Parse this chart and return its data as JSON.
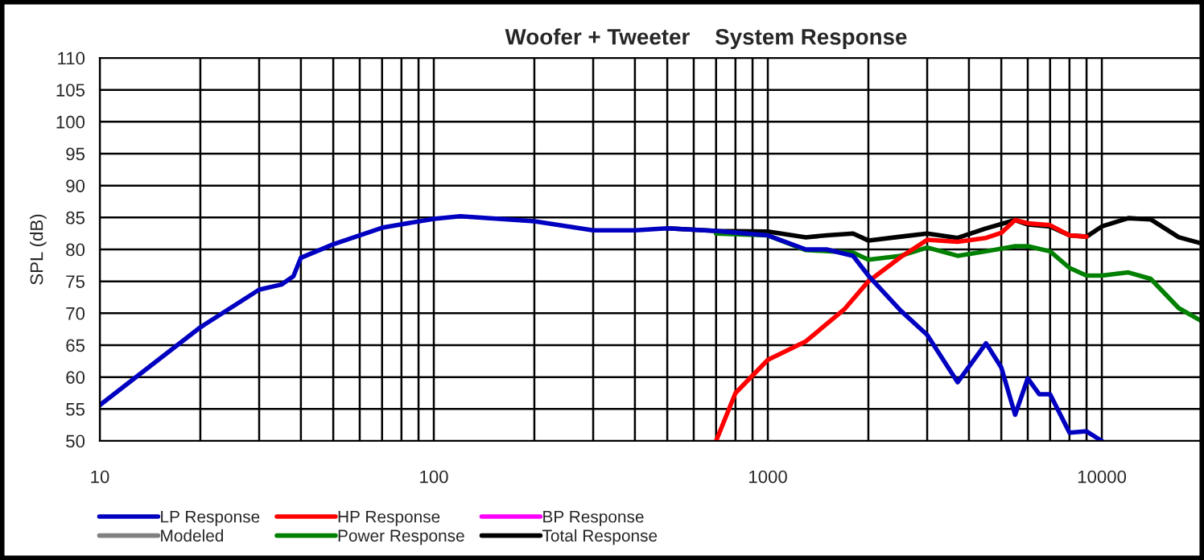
{
  "chart_data": {
    "type": "line",
    "title": "Woofer + Tweeter    System Response",
    "ylabel": "SPL (dB)",
    "xlim": [
      10,
      20000
    ],
    "xticks": [
      10,
      100,
      1000,
      10000
    ],
    "ylim": [
      50,
      110
    ],
    "yticks": [
      50,
      55,
      60,
      65,
      70,
      75,
      80,
      85,
      90,
      95,
      100,
      105,
      110
    ],
    "log": "x",
    "grid": true,
    "legend": "bottom",
    "marker": "none",
    "line_style": "solid",
    "series": [
      {
        "name": "Total Response",
        "color": "#000000",
        "x": [
          500,
          700,
          1000,
          1300,
          1500,
          1800,
          2000,
          2500,
          3000,
          3700,
          4500,
          5500,
          6000,
          7000,
          8000,
          9000,
          10000,
          12000,
          14000,
          17000,
          20000
        ],
        "values": [
          83.3,
          82.9,
          82.8,
          81.9,
          82.2,
          82.5,
          81.4,
          82.0,
          82.5,
          81.8,
          83.3,
          84.6,
          83.9,
          83.6,
          82.2,
          82.0,
          83.6,
          84.9,
          84.7,
          81.9,
          80.9
        ]
      },
      {
        "name": "Power Response",
        "color": "#008000",
        "x": [
          700,
          1000,
          1300,
          1800,
          2000,
          2500,
          3000,
          3700,
          4500,
          5500,
          6000,
          7000,
          8000,
          9000,
          10000,
          12000,
          14000,
          17000,
          20000
        ],
        "values": [
          82.5,
          82.2,
          79.9,
          79.5,
          78.4,
          79.0,
          80.3,
          79.0,
          79.7,
          80.5,
          80.5,
          79.7,
          77.1,
          75.9,
          75.9,
          76.4,
          75.4,
          70.8,
          68.7
        ]
      },
      {
        "name": "HP Response",
        "color": "#ff0000",
        "x": [
          700,
          800,
          1000,
          1300,
          1700,
          2000,
          2500,
          3000,
          3700,
          4500,
          5000,
          5500,
          6000,
          7000,
          8000,
          9000
        ],
        "values": [
          50.0,
          57.5,
          62.7,
          65.6,
          70.7,
          75.0,
          78.8,
          81.5,
          81.2,
          81.8,
          82.6,
          84.6,
          84.1,
          83.8,
          82.2,
          82.0
        ]
      },
      {
        "name": "LP Response",
        "color": "#0000c0",
        "x": [
          10,
          20,
          30,
          35,
          38,
          40,
          50,
          70,
          100,
          120,
          200,
          300,
          400,
          500,
          700,
          1000,
          1300,
          1500,
          1800,
          2000,
          2500,
          3000,
          3700,
          4500,
          5000,
          5500,
          6000,
          6500,
          7000,
          8000,
          9000,
          10000
        ],
        "values": [
          55.6,
          67.8,
          73.7,
          74.5,
          75.8,
          78.7,
          80.8,
          83.4,
          84.8,
          85.2,
          84.4,
          83.0,
          83.0,
          83.3,
          82.9,
          82.2,
          80.0,
          80.0,
          79.0,
          75.9,
          70.4,
          66.6,
          59.2,
          65.3,
          61.5,
          54.1,
          59.8,
          57.3,
          57.3,
          51.3,
          51.5,
          50.0
        ]
      },
      {
        "name": "BP Response",
        "color": "#ff00ff"
      },
      {
        "name": "Modeled",
        "color": "#808080"
      }
    ]
  }
}
